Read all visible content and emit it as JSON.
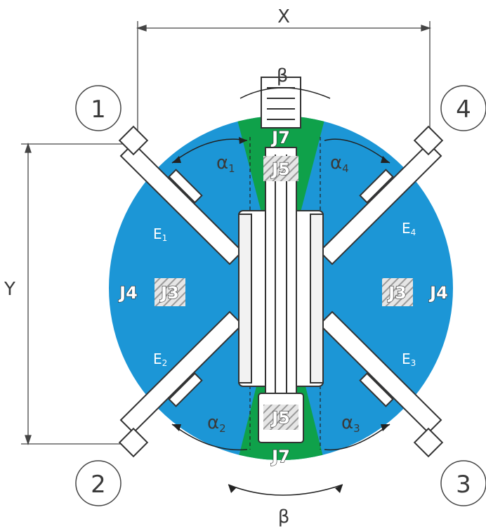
{
  "dimensions": {
    "x_label": "X",
    "y_label": "Y",
    "beta_label": "β"
  },
  "outriggers": [
    {
      "number": "1",
      "extension": "E",
      "extension_index": "1",
      "angle": "α",
      "angle_index": "1"
    },
    {
      "number": "2",
      "extension": "E",
      "extension_index": "2",
      "angle": "α",
      "angle_index": "2"
    },
    {
      "number": "3",
      "extension": "E",
      "extension_index": "3",
      "angle": "α",
      "angle_index": "3"
    },
    {
      "number": "4",
      "extension": "E",
      "extension_index": "4",
      "angle": "α",
      "angle_index": "4"
    }
  ],
  "zones": {
    "j3": "J3",
    "j4": "J4",
    "j5": "J5",
    "j7": "J7"
  },
  "colors": {
    "blue_zone": "#1c96d6",
    "green_zone": "#0fa14a",
    "machine_fill": "#ffffff",
    "line": "#333333"
  }
}
